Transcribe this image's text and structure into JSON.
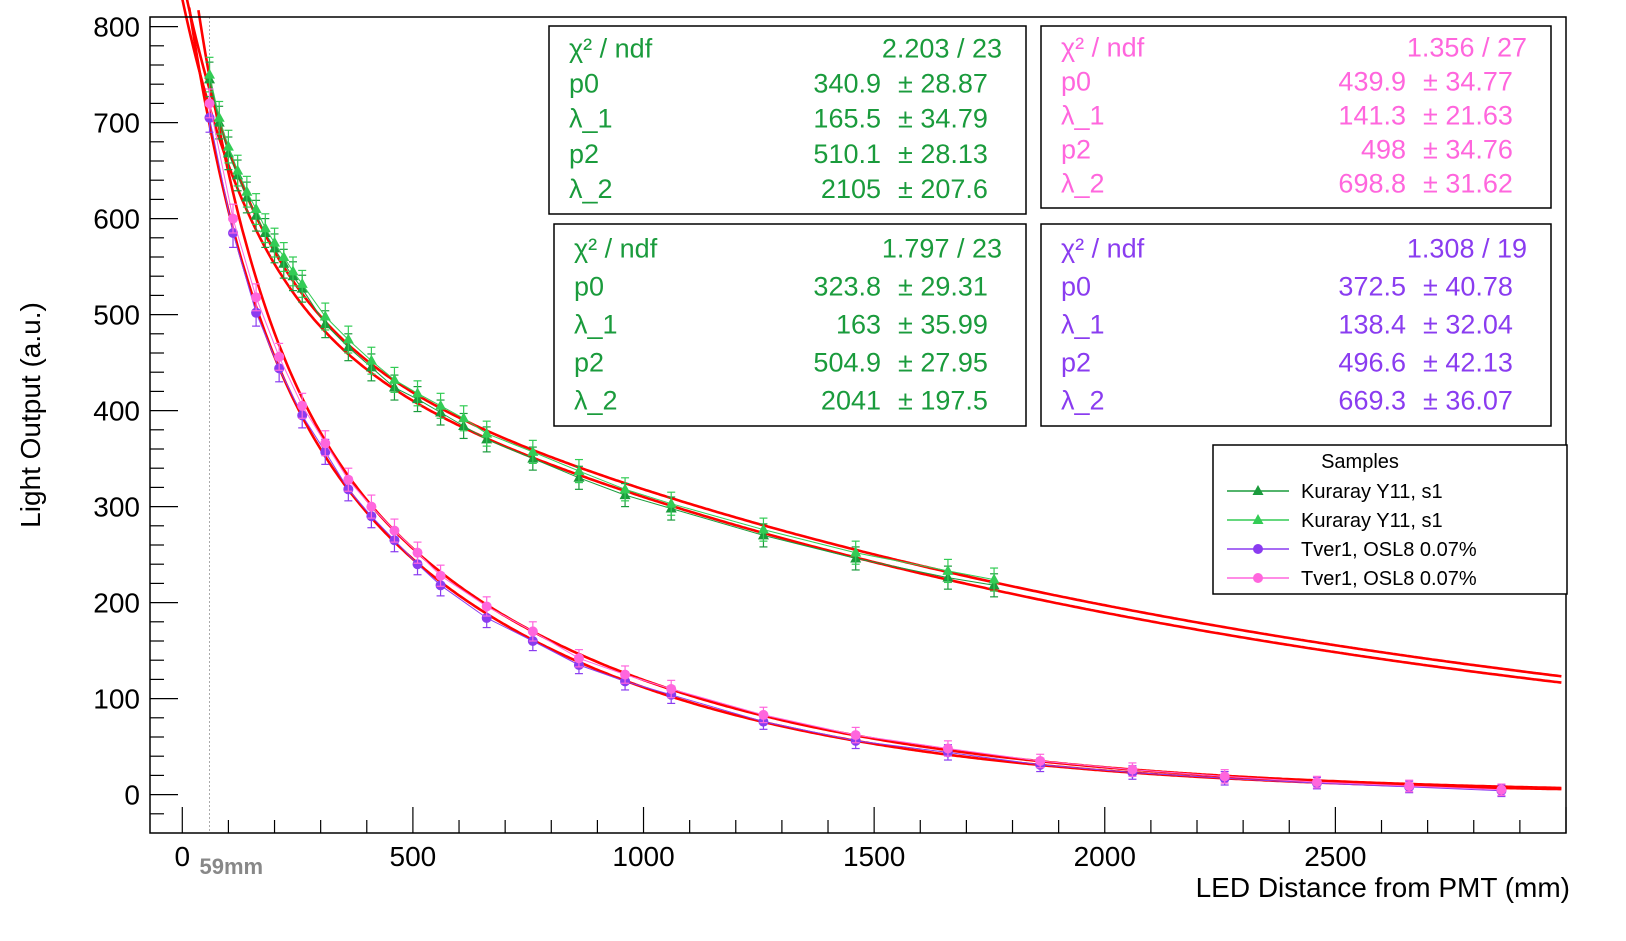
{
  "chart_data": {
    "type": "scatter",
    "xlabel": "LED Distance from PMT (mm)",
    "ylabel": "Light Output (a.u.)",
    "xlim": [
      -70,
      3000
    ],
    "ylim": [
      -40,
      810
    ],
    "x_ticks": [
      0,
      500,
      1000,
      1500,
      2000,
      2500
    ],
    "y_ticks": [
      0,
      100,
      200,
      300,
      400,
      500,
      600,
      700,
      800
    ],
    "marker_line": {
      "x": 59,
      "label": "59mm"
    },
    "legend": {
      "title": "Samples",
      "entries": [
        "Kuraray Y11, s1",
        "Kuraray Y11, s1",
        "Tver1, OSL8 0.07%",
        "Tver1, OSL8 0.07%"
      ]
    },
    "series": [
      {
        "name": "Kuraray Y11, s1",
        "color": "#1a9b3c",
        "marker": "triangle",
        "x": [
          59,
          80,
          100,
          120,
          140,
          160,
          180,
          200,
          220,
          240,
          260,
          310,
          360,
          410,
          460,
          510,
          560,
          610,
          660,
          760,
          860,
          960,
          1060,
          1260,
          1460,
          1660,
          1760
        ],
        "y": [
          745,
          700,
          668,
          645,
          622,
          603,
          585,
          569,
          553,
          540,
          527,
          490,
          466,
          445,
          424,
          412,
          398,
          384,
          370,
          350,
          330,
          312,
          298,
          270,
          246,
          226,
          218
        ],
        "err": [
          18,
          17,
          17,
          16,
          16,
          16,
          15,
          15,
          15,
          15,
          14,
          14,
          14,
          14,
          13,
          13,
          13,
          13,
          13,
          12,
          12,
          12,
          12,
          12,
          12,
          12,
          12
        ]
      },
      {
        "name": "Kuraray Y11, s1",
        "color": "#33cc55",
        "marker": "triangle",
        "x": [
          59,
          80,
          100,
          120,
          140,
          160,
          180,
          200,
          220,
          240,
          260,
          310,
          360,
          410,
          460,
          510,
          560,
          610,
          660,
          760,
          860,
          960,
          1060,
          1260,
          1460,
          1660,
          1760
        ],
        "y": [
          750,
          705,
          675,
          650,
          628,
          610,
          590,
          575,
          560,
          545,
          532,
          498,
          474,
          452,
          432,
          418,
          405,
          392,
          376,
          357,
          337,
          318,
          303,
          276,
          252,
          233,
          224
        ],
        "err": [
          18,
          17,
          17,
          16,
          16,
          16,
          15,
          15,
          15,
          15,
          14,
          14,
          14,
          14,
          13,
          13,
          13,
          13,
          13,
          12,
          12,
          12,
          12,
          12,
          12,
          12,
          12
        ]
      },
      {
        "name": "Tver1, OSL8 0.07%",
        "color": "#8a3cf0",
        "marker": "circle",
        "x": [
          59,
          110,
          160,
          210,
          260,
          310,
          360,
          410,
          460,
          510,
          560,
          660,
          760,
          860,
          960,
          1060,
          1260,
          1460,
          1660,
          1860,
          2060,
          2260,
          2460,
          2660,
          2860
        ],
        "y": [
          705,
          585,
          502,
          444,
          395,
          357,
          318,
          290,
          265,
          240,
          218,
          184,
          160,
          135,
          118,
          104,
          76,
          56,
          44,
          31,
          23,
          17,
          12,
          8,
          4
        ],
        "err": [
          15,
          15,
          14,
          14,
          13,
          13,
          12,
          12,
          12,
          11,
          11,
          10,
          10,
          9,
          9,
          9,
          8,
          8,
          8,
          7,
          7,
          7,
          6,
          6,
          6
        ]
      },
      {
        "name": "Tver1, OSL8 0.07%",
        "color": "#ff66dd",
        "marker": "circle",
        "x": [
          59,
          110,
          160,
          210,
          260,
          310,
          360,
          410,
          460,
          510,
          560,
          660,
          760,
          860,
          960,
          1060,
          1260,
          1460,
          1660,
          1860,
          2060,
          2260,
          2460,
          2660,
          2860
        ],
        "y": [
          720,
          600,
          518,
          456,
          405,
          366,
          328,
          300,
          275,
          252,
          228,
          196,
          170,
          142,
          125,
          110,
          83,
          62,
          48,
          35,
          26,
          19,
          13,
          9,
          5
        ],
        "err": [
          15,
          15,
          14,
          14,
          13,
          13,
          12,
          12,
          12,
          11,
          11,
          10,
          10,
          9,
          9,
          9,
          8,
          8,
          8,
          7,
          7,
          7,
          6,
          6,
          6
        ]
      }
    ],
    "fits": [
      {
        "color": "#ff0000",
        "p0": 340.9,
        "lambda_1": 165.5,
        "p2": 510.1,
        "lambda_2": 2105,
        "x_range": [
          0,
          2990
        ]
      },
      {
        "color": "#ff0000",
        "p0": 323.8,
        "lambda_1": 163,
        "p2": 504.9,
        "lambda_2": 2041,
        "x_range": [
          0,
          2990
        ]
      },
      {
        "color": "#ff0000",
        "p0": 439.9,
        "lambda_1": 141.3,
        "p2": 498,
        "lambda_2": 698.8,
        "x_range": [
          0,
          2990
        ]
      },
      {
        "color": "#ff0000",
        "p0": 372.5,
        "lambda_1": 138.4,
        "p2": 496.6,
        "lambda_2": 669.3,
        "x_range": [
          0,
          2990
        ]
      }
    ],
    "stat_boxes": [
      {
        "color": "#1a9b3c",
        "rows": [
          {
            "label": "χ² / ndf",
            "value": "2.203 / 23",
            "error": ""
          },
          {
            "label": "p0",
            "value": "340.9",
            "error": "± 28.87"
          },
          {
            "label": "λ_1",
            "value": "165.5",
            "error": "± 34.79"
          },
          {
            "label": "p2",
            "value": "510.1",
            "error": "± 28.13"
          },
          {
            "label": "λ_2",
            "value": "2105",
            "error": "± 207.6"
          }
        ]
      },
      {
        "color": "#ff66dd",
        "rows": [
          {
            "label": "χ² / ndf",
            "value": "1.356 / 27",
            "error": ""
          },
          {
            "label": "p0",
            "value": "439.9",
            "error": "± 34.77"
          },
          {
            "label": "λ_1",
            "value": "141.3",
            "error": "± 21.63"
          },
          {
            "label": "p2",
            "value": "498",
            "error": "± 34.76"
          },
          {
            "label": "λ_2",
            "value": "698.8",
            "error": "± 31.62"
          }
        ]
      },
      {
        "color": "#1a9b3c",
        "rows": [
          {
            "label": "χ² / ndf",
            "value": "1.797 / 23",
            "error": ""
          },
          {
            "label": "p0",
            "value": "323.8",
            "error": "± 29.31"
          },
          {
            "label": "λ_1",
            "value": "163",
            "error": "± 35.99"
          },
          {
            "label": "p2",
            "value": "504.9",
            "error": "± 27.95"
          },
          {
            "label": "λ_2",
            "value": "2041",
            "error": "± 197.5"
          }
        ]
      },
      {
        "color": "#8a3cf0",
        "rows": [
          {
            "label": "χ² / ndf",
            "value": "1.308 / 19",
            "error": ""
          },
          {
            "label": "p0",
            "value": "372.5",
            "error": "± 40.78"
          },
          {
            "label": "λ_1",
            "value": "138.4",
            "error": "± 32.04"
          },
          {
            "label": "p2",
            "value": "496.6",
            "error": "± 42.13"
          },
          {
            "label": "λ_2",
            "value": "669.3",
            "error": "± 36.07"
          }
        ]
      }
    ]
  }
}
